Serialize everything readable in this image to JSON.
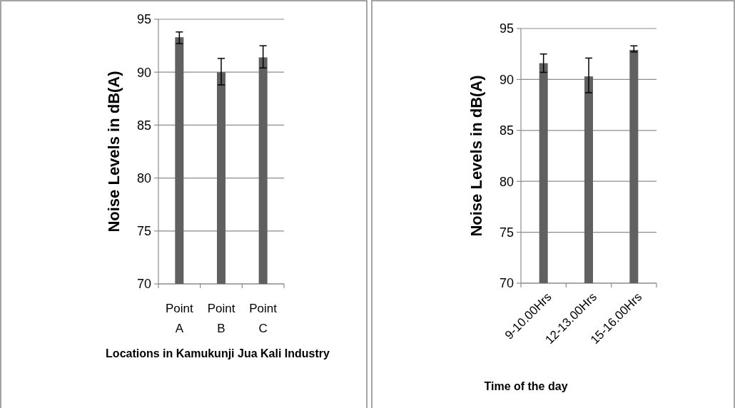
{
  "chart_data": [
    {
      "type": "bar",
      "categories": [
        "Point A",
        "Point B",
        "Point C"
      ],
      "values": [
        93.3,
        90.0,
        91.4
      ],
      "errors": [
        [
          92.7,
          93.8
        ],
        [
          88.8,
          91.3
        ],
        [
          90.4,
          92.5
        ]
      ],
      "color": "#606060",
      "ylim": [
        70,
        95
      ],
      "yticks": [
        70,
        75,
        80,
        85,
        90,
        95
      ],
      "grid": "y",
      "ylabel": "Noise Levels in dB(A)",
      "xlabel": "Locations in Kamukunji Jua Kali Industry"
    },
    {
      "type": "bar",
      "categories": [
        "9-10.00Hrs",
        "12-13.00Hrs",
        "15-16.00Hrs"
      ],
      "values": [
        91.6,
        90.3,
        92.9
      ],
      "errors": [
        [
          90.7,
          92.5
        ],
        [
          88.7,
          92.1
        ],
        [
          92.7,
          93.3
        ]
      ],
      "color": "#606060",
      "ylim": [
        70,
        95
      ],
      "yticks": [
        70,
        75,
        80,
        85,
        90,
        95
      ],
      "grid": "y",
      "ylabel": "Noise Levels in dB(A)",
      "xlabel": "Time of the day"
    }
  ]
}
